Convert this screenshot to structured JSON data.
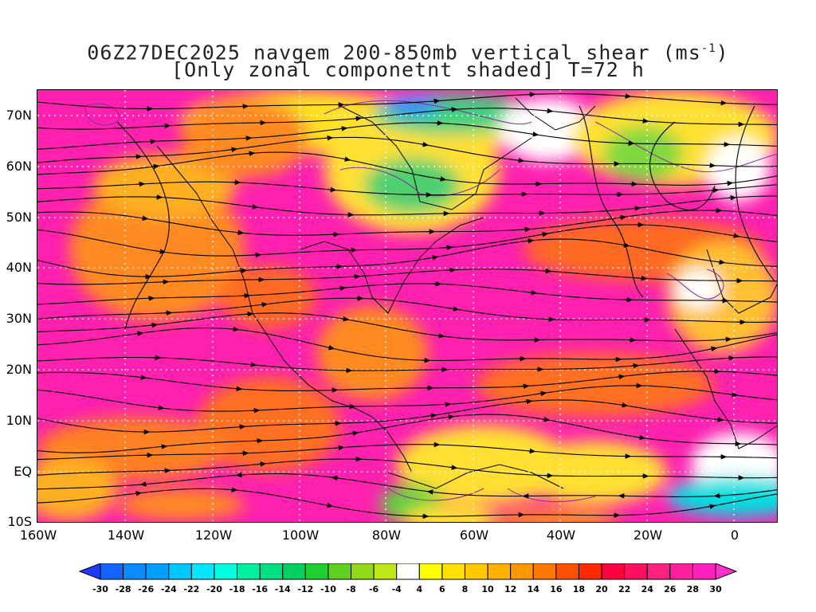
{
  "title": {
    "line1_prefix": "06Z27DEC2025 navgem 200-850mb vertical shear (ms",
    "line1_sup": "-1",
    "line1_suffix": ")",
    "line2": "[Only zonal componetnt shaded] T=72 h"
  },
  "lat_labels": [
    "70N",
    "60N",
    "50N",
    "40N",
    "30N",
    "20N",
    "10N",
    "EQ",
    "10S"
  ],
  "lon_labels": [
    "160W",
    "140W",
    "120W",
    "100W",
    "80W",
    "60W",
    "40W",
    "20W",
    "0"
  ],
  "colorbar": {
    "labels": [
      "-30",
      "-28",
      "-26",
      "-24",
      "-22",
      "-20",
      "-18",
      "-16",
      "-14",
      "-12",
      "-10",
      "-8",
      "-6",
      "-4",
      "4",
      "6",
      "8",
      "10",
      "12",
      "14",
      "16",
      "18",
      "20",
      "22",
      "24",
      "26",
      "28",
      "30"
    ],
    "colors": [
      "#1E3CFF",
      "#1464FF",
      "#0A8CFF",
      "#00A0FF",
      "#00C8FF",
      "#00E6FF",
      "#00FFE0",
      "#00F0A0",
      "#00E080",
      "#00D060",
      "#20D030",
      "#60D020",
      "#90D818",
      "#C0E818",
      "#FFFFFF",
      "#FFFF00",
      "#FFE000",
      "#FFC800",
      "#FFB000",
      "#FF9800",
      "#FF7800",
      "#FF5000",
      "#FF2800",
      "#FF0040",
      "#FF1060",
      "#FF2080",
      "#FF20A0",
      "#FF20C0",
      "#FF30D0"
    ]
  }
}
